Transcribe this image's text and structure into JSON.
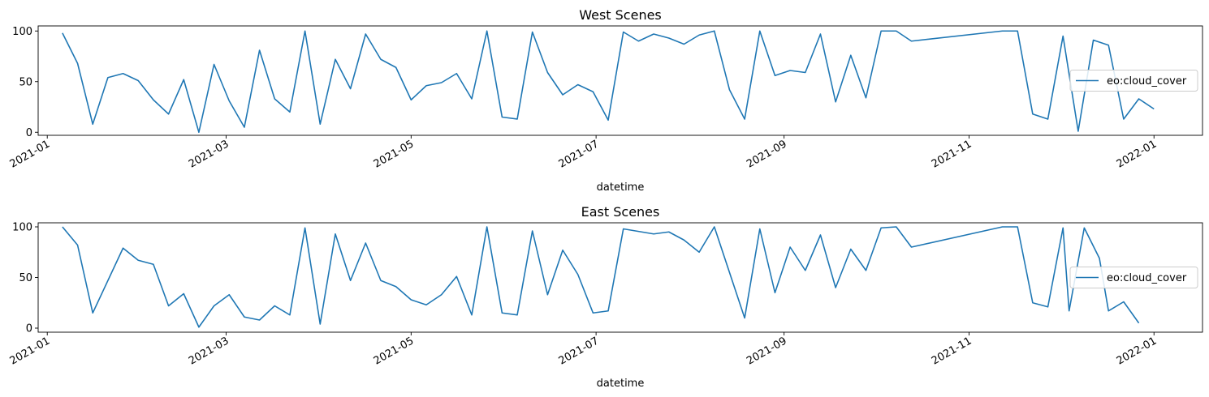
{
  "chart_data": [
    {
      "type": "line",
      "title": "West Scenes",
      "xlabel": "datetime",
      "ylabel": "",
      "ylim": [
        -3,
        105
      ],
      "xlim": [
        "2020-12-29",
        "2022-01-17"
      ],
      "xticks": [
        "2021-01",
        "2021-03",
        "2021-05",
        "2021-07",
        "2021-09",
        "2021-11",
        "2022-01"
      ],
      "yticks": [
        0,
        50,
        100
      ],
      "grid": false,
      "legend_position": "center-right",
      "series": [
        {
          "name": "eo:cloud_cover",
          "color": "#1f77b4",
          "points": [
            [
              "2021-01-06",
              98
            ],
            [
              "2021-01-11",
              68
            ],
            [
              "2021-01-16",
              8
            ],
            [
              "2021-01-21",
              54
            ],
            [
              "2021-01-26",
              58
            ],
            [
              "2021-01-31",
              51
            ],
            [
              "2021-02-05",
              32
            ],
            [
              "2021-02-10",
              18
            ],
            [
              "2021-02-15",
              52
            ],
            [
              "2021-02-20",
              0
            ],
            [
              "2021-02-25",
              67
            ],
            [
              "2021-03-02",
              31
            ],
            [
              "2021-03-07",
              5
            ],
            [
              "2021-03-12",
              81
            ],
            [
              "2021-03-17",
              33
            ],
            [
              "2021-03-22",
              20
            ],
            [
              "2021-03-27",
              100
            ],
            [
              "2021-04-01",
              8
            ],
            [
              "2021-04-06",
              72
            ],
            [
              "2021-04-11",
              43
            ],
            [
              "2021-04-16",
              97
            ],
            [
              "2021-04-21",
              72
            ],
            [
              "2021-04-26",
              64
            ],
            [
              "2021-05-01",
              32
            ],
            [
              "2021-05-06",
              46
            ],
            [
              "2021-05-11",
              49
            ],
            [
              "2021-05-16",
              58
            ],
            [
              "2021-05-21",
              33
            ],
            [
              "2021-05-26",
              100
            ],
            [
              "2021-05-31",
              15
            ],
            [
              "2021-06-05",
              13
            ],
            [
              "2021-06-10",
              99
            ],
            [
              "2021-06-15",
              59
            ],
            [
              "2021-06-20",
              37
            ],
            [
              "2021-06-25",
              47
            ],
            [
              "2021-06-30",
              40
            ],
            [
              "2021-07-05",
              12
            ],
            [
              "2021-07-10",
              99
            ],
            [
              "2021-07-15",
              90
            ],
            [
              "2021-07-20",
              97
            ],
            [
              "2021-07-25",
              93
            ],
            [
              "2021-07-30",
              87
            ],
            [
              "2021-08-04",
              96
            ],
            [
              "2021-08-09",
              100
            ],
            [
              "2021-08-14",
              42
            ],
            [
              "2021-08-19",
              13
            ],
            [
              "2021-08-24",
              100
            ],
            [
              "2021-08-29",
              56
            ],
            [
              "2021-09-03",
              61
            ],
            [
              "2021-09-08",
              59
            ],
            [
              "2021-09-13",
              97
            ],
            [
              "2021-09-18",
              30
            ],
            [
              "2021-09-23",
              76
            ],
            [
              "2021-09-28",
              34
            ],
            [
              "2021-10-03",
              100
            ],
            [
              "2021-10-08",
              100
            ],
            [
              "2021-10-13",
              90
            ],
            [
              "2021-11-12",
              100
            ],
            [
              "2021-11-17",
              100
            ],
            [
              "2021-11-22",
              18
            ],
            [
              "2021-11-27",
              13
            ],
            [
              "2021-12-02",
              95
            ],
            [
              "2021-12-07",
              1
            ],
            [
              "2021-12-12",
              91
            ],
            [
              "2021-12-17",
              86
            ],
            [
              "2021-12-22",
              13
            ],
            [
              "2021-12-27",
              33
            ],
            [
              "2022-01-01",
              23
            ]
          ]
        }
      ]
    },
    {
      "type": "line",
      "title": "East Scenes",
      "xlabel": "datetime",
      "ylabel": "",
      "ylim": [
        -4,
        104
      ],
      "xlim": [
        "2020-12-29",
        "2022-01-17"
      ],
      "xticks": [
        "2021-01",
        "2021-03",
        "2021-05",
        "2021-07",
        "2021-09",
        "2021-11",
        "2022-01"
      ],
      "yticks": [
        0,
        50,
        100
      ],
      "grid": false,
      "legend_position": "center-right",
      "series": [
        {
          "name": "eo:cloud_cover",
          "color": "#1f77b4",
          "points": [
            [
              "2021-01-06",
              100
            ],
            [
              "2021-01-11",
              82
            ],
            [
              "2021-01-16",
              15
            ],
            [
              "2021-01-26",
              79
            ],
            [
              "2021-01-31",
              67
            ],
            [
              "2021-02-05",
              63
            ],
            [
              "2021-02-10",
              22
            ],
            [
              "2021-02-15",
              34
            ],
            [
              "2021-02-20",
              1
            ],
            [
              "2021-02-25",
              22
            ],
            [
              "2021-03-02",
              33
            ],
            [
              "2021-03-07",
              11
            ],
            [
              "2021-03-12",
              8
            ],
            [
              "2021-03-17",
              22
            ],
            [
              "2021-03-22",
              13
            ],
            [
              "2021-03-27",
              99
            ],
            [
              "2021-04-01",
              4
            ],
            [
              "2021-04-06",
              93
            ],
            [
              "2021-04-11",
              47
            ],
            [
              "2021-04-16",
              84
            ],
            [
              "2021-04-21",
              47
            ],
            [
              "2021-04-26",
              41
            ],
            [
              "2021-05-01",
              28
            ],
            [
              "2021-05-06",
              23
            ],
            [
              "2021-05-11",
              33
            ],
            [
              "2021-05-16",
              51
            ],
            [
              "2021-05-21",
              13
            ],
            [
              "2021-05-26",
              100
            ],
            [
              "2021-05-31",
              15
            ],
            [
              "2021-06-05",
              13
            ],
            [
              "2021-06-10",
              96
            ],
            [
              "2021-06-15",
              33
            ],
            [
              "2021-06-20",
              77
            ],
            [
              "2021-06-25",
              53
            ],
            [
              "2021-06-30",
              15
            ],
            [
              "2021-07-05",
              17
            ],
            [
              "2021-07-10",
              98
            ],
            [
              "2021-07-20",
              93
            ],
            [
              "2021-07-25",
              95
            ],
            [
              "2021-07-30",
              87
            ],
            [
              "2021-08-04",
              75
            ],
            [
              "2021-08-09",
              100
            ],
            [
              "2021-08-19",
              10
            ],
            [
              "2021-08-24",
              98
            ],
            [
              "2021-08-29",
              35
            ],
            [
              "2021-09-03",
              80
            ],
            [
              "2021-09-08",
              57
            ],
            [
              "2021-09-13",
              92
            ],
            [
              "2021-09-18",
              40
            ],
            [
              "2021-09-23",
              78
            ],
            [
              "2021-09-28",
              57
            ],
            [
              "2021-10-03",
              99
            ],
            [
              "2021-10-08",
              100
            ],
            [
              "2021-10-13",
              80
            ],
            [
              "2021-11-12",
              100
            ],
            [
              "2021-11-17",
              100
            ],
            [
              "2021-11-22",
              25
            ],
            [
              "2021-11-27",
              21
            ],
            [
              "2021-12-02",
              99
            ],
            [
              "2021-12-04",
              17
            ],
            [
              "2021-12-09",
              99
            ],
            [
              "2021-12-14",
              69
            ],
            [
              "2021-12-17",
              17
            ],
            [
              "2021-12-22",
              26
            ],
            [
              "2021-12-27",
              5
            ]
          ]
        }
      ]
    }
  ]
}
